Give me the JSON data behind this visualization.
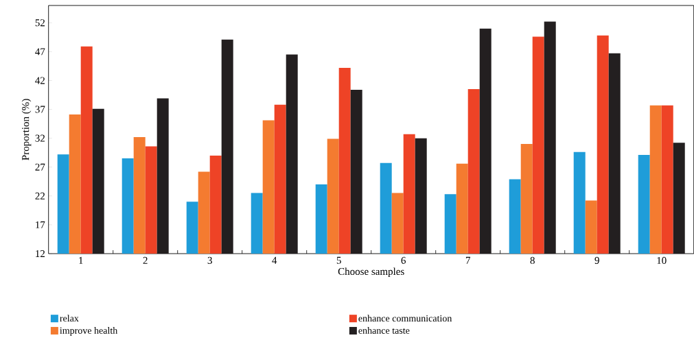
{
  "chart_data": {
    "type": "bar",
    "xlabel": "Choose samples",
    "ylabel": "Proportion (%)",
    "categories": [
      "1",
      "2",
      "3",
      "4",
      "5",
      "6",
      "7",
      "8",
      "9",
      "10"
    ],
    "series": [
      {
        "name": "relax",
        "color": "#1f9dd9",
        "values": [
          29.2,
          28.5,
          21.0,
          22.5,
          24.0,
          27.7,
          22.3,
          24.9,
          29.6,
          29.1
        ]
      },
      {
        "name": "improve health",
        "color": "#f47b30",
        "values": [
          36.1,
          32.2,
          26.2,
          35.1,
          31.9,
          22.5,
          27.6,
          31.0,
          21.2,
          37.7
        ]
      },
      {
        "name": "enhance communication",
        "color": "#ee4326",
        "values": [
          47.9,
          30.6,
          29.0,
          37.8,
          44.2,
          32.7,
          40.5,
          49.6,
          49.8,
          37.7
        ]
      },
      {
        "name": "enhance taste",
        "color": "#231f20",
        "values": [
          37.1,
          38.9,
          49.1,
          46.5,
          40.4,
          32.0,
          51.0,
          52.2,
          46.7,
          31.2
        ]
      }
    ],
    "ylim": [
      12,
      55
    ],
    "yticks": [
      12,
      17,
      22,
      27,
      32,
      37,
      42,
      47,
      52
    ],
    "legend": "bottom"
  }
}
